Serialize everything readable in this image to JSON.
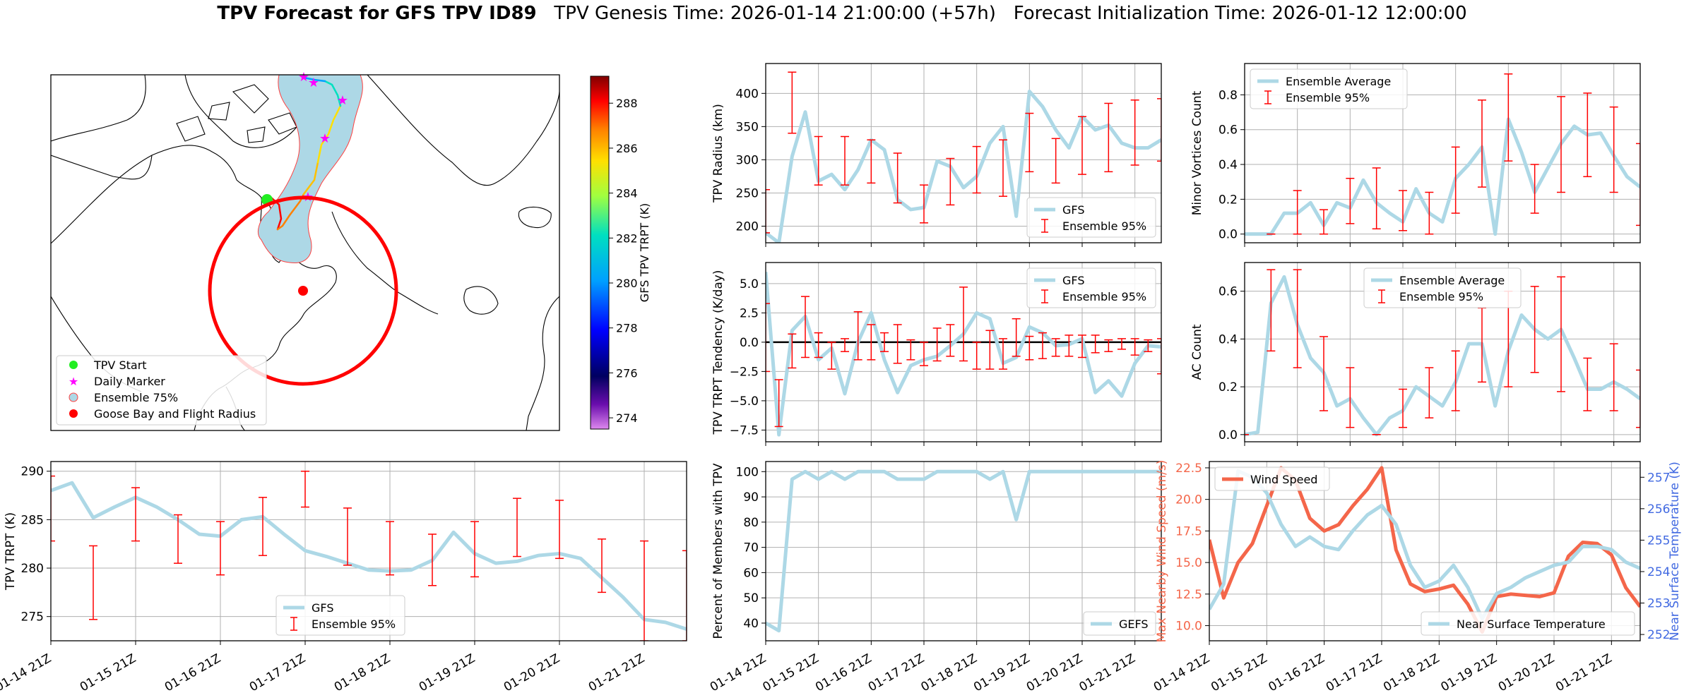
{
  "title": {
    "bold": "TPV Forecast for GFS TPV ID89",
    "genesis": "TPV Genesis Time: 2026-01-14 21:00:00 (+57h)",
    "init": "Forecast Initialization Time: 2026-01-12 12:00:00"
  },
  "colors": {
    "gfs": "#add8e6",
    "ens": "#ff0000",
    "wind": "#f4664a",
    "temp": "#4169e1",
    "grid": "#b0b0b0"
  },
  "map": {
    "legend": [
      "TPV Start",
      "Daily Marker",
      "Ensemble 75%",
      "Goose Bay and Flight Radius"
    ],
    "colorbar": {
      "label": "GFS TPV TRPT (K)",
      "ticks": [
        "274",
        "276",
        "278",
        "280",
        "282",
        "284",
        "286",
        "288"
      ],
      "min": 273.5,
      "max": 289.2
    }
  },
  "x_ticks": [
    "01-14 21Z",
    "01-15 21Z",
    "01-16 21Z",
    "01-17 21Z",
    "01-18 21Z",
    "01-19 21Z",
    "01-20 21Z",
    "01-21 21Z"
  ],
  "chart_data": [
    {
      "id": "radius",
      "type": "line",
      "ylabel": "TPV Radius (km)",
      "ylim": [
        175,
        445
      ],
      "yticks": [
        200,
        250,
        300,
        350,
        400
      ],
      "ytick_labels": [
        "200",
        "250",
        "300",
        "350",
        "400"
      ],
      "legend": [
        "GFS",
        "Ensemble 95%"
      ],
      "legend_pos": "lower-right",
      "series": [
        {
          "name": "GFS",
          "values": [
            190,
            175,
            305,
            372,
            268,
            278,
            255,
            285,
            330,
            315,
            240,
            225,
            228,
            298,
            290,
            258,
            275,
            325,
            350,
            215,
            403,
            380,
            345,
            318,
            365,
            345,
            352,
            325,
            318,
            318,
            330
          ]
        }
      ],
      "errorbars": [
        [
          0,
          190,
          255
        ],
        [
          2,
          340,
          432
        ],
        [
          4,
          262,
          335
        ],
        [
          6,
          262,
          335
        ],
        [
          8,
          265,
          330
        ],
        [
          10,
          235,
          310
        ],
        [
          12,
          205,
          262
        ],
        [
          14,
          232,
          302
        ],
        [
          16,
          250,
          320
        ],
        [
          18,
          245,
          330
        ],
        [
          20,
          282,
          370
        ],
        [
          22,
          265,
          332
        ],
        [
          24,
          278,
          365
        ],
        [
          26,
          282,
          385
        ],
        [
          28,
          292,
          390
        ],
        [
          30,
          298,
          392
        ]
      ]
    },
    {
      "id": "minor",
      "type": "line",
      "ylabel": "Minor Vortices Count",
      "ylim": [
        -0.05,
        0.98
      ],
      "yticks": [
        0,
        0.2,
        0.4,
        0.6,
        0.8
      ],
      "ytick_labels": [
        "0.0",
        "0.2",
        "0.4",
        "0.6",
        "0.8"
      ],
      "legend": [
        "Ensemble Average",
        "Ensemble 95%"
      ],
      "legend_pos": "upper-left",
      "series": [
        {
          "name": "Ensemble Average",
          "values": [
            0,
            0,
            0,
            0.12,
            0.12,
            0.18,
            0.05,
            0.18,
            0.15,
            0.31,
            0.18,
            0.12,
            0.07,
            0.26,
            0.12,
            0.07,
            0.32,
            0.4,
            0.5,
            0,
            0.66,
            0.47,
            0.24,
            0.38,
            0.52,
            0.62,
            0.57,
            0.58,
            0.45,
            0.33,
            0.27
          ]
        }
      ],
      "errorbars": [
        [
          2,
          0,
          0
        ],
        [
          4,
          0,
          0.25
        ],
        [
          6,
          0,
          0.14
        ],
        [
          8,
          0.06,
          0.32
        ],
        [
          10,
          0.03,
          0.38
        ],
        [
          12,
          0.02,
          0.25
        ],
        [
          14,
          0,
          0.24
        ],
        [
          16,
          0.12,
          0.5
        ],
        [
          18,
          0.27,
          0.77
        ],
        [
          20,
          0.42,
          0.92
        ],
        [
          22,
          0.12,
          0.4
        ],
        [
          24,
          0.24,
          0.79
        ],
        [
          26,
          0.33,
          0.81
        ],
        [
          28,
          0.24,
          0.73
        ],
        [
          30,
          0.05,
          0.52
        ]
      ]
    },
    {
      "id": "tendency",
      "type": "line",
      "ylabel": "TPV TRPT Tendency (K/day)",
      "ylim": [
        -8.5,
        6.8
      ],
      "yticks": [
        -7.5,
        -5,
        -2.5,
        0,
        2.5,
        5
      ],
      "ytick_labels": [
        "−7.5",
        "−5.0",
        "−2.5",
        "0.0",
        "2.5",
        "5.0"
      ],
      "legend": [
        "GFS",
        "Ensemble 95%"
      ],
      "legend_pos": "upper-right",
      "series": [
        {
          "name": "GFS",
          "values": [
            6,
            -7.9,
            1,
            2.2,
            -1.5,
            -0.5,
            -4.4,
            0,
            2.5,
            -1.5,
            -4.3,
            -2,
            -1.5,
            -1.2,
            -0.3,
            0.7,
            2.5,
            2,
            -1.8,
            -1.3,
            1.3,
            0.8,
            -0.3,
            -0.2,
            0.3,
            -4.3,
            -3.3,
            -4.6,
            -1.8,
            -0.3,
            -0.4
          ]
        }
      ],
      "errorbars": [
        [
          0,
          -2.5,
          3.3
        ],
        [
          1,
          -7.2,
          -3.2
        ],
        [
          2,
          -2.2,
          0.7
        ],
        [
          3,
          -1.3,
          3.9
        ],
        [
          4,
          -1.3,
          0.8
        ],
        [
          5,
          -2.3,
          0
        ],
        [
          6,
          -0.8,
          0.3
        ],
        [
          7,
          -1.5,
          2.6
        ],
        [
          8,
          -1.5,
          1.5
        ],
        [
          9,
          -0.8,
          0.8
        ],
        [
          10,
          -1.8,
          1.5
        ],
        [
          11,
          -1.5,
          0.2
        ],
        [
          12,
          -2,
          0
        ],
        [
          13,
          -1.6,
          1.2
        ],
        [
          14,
          -1.2,
          1.5
        ],
        [
          15,
          -1.6,
          4.7
        ],
        [
          16,
          -2.3,
          0
        ],
        [
          17,
          -2.3,
          1
        ],
        [
          18,
          -2.3,
          0.3
        ],
        [
          19,
          -1.2,
          2
        ],
        [
          20,
          -1.5,
          0.5
        ],
        [
          21,
          -1.4,
          0.8
        ],
        [
          22,
          -1.2,
          0.3
        ],
        [
          23,
          -1.2,
          0.6
        ],
        [
          24,
          -1.3,
          0.6
        ],
        [
          25,
          -0.9,
          0.6
        ],
        [
          26,
          -0.8,
          0.2
        ],
        [
          27,
          -0.6,
          0.3
        ],
        [
          28,
          -1.1,
          0.3
        ],
        [
          29,
          -0.8,
          0.2
        ],
        [
          30,
          -2.7,
          0.3
        ]
      ]
    },
    {
      "id": "ac",
      "type": "line",
      "ylabel": "AC Count",
      "ylim": [
        -0.03,
        0.72
      ],
      "yticks": [
        0,
        0.2,
        0.4,
        0.6
      ],
      "ytick_labels": [
        "0.0",
        "0.2",
        "0.4",
        "0.6"
      ],
      "legend": [
        "Ensemble Average",
        "Ensemble 95%"
      ],
      "legend_pos": "upper-center",
      "series": [
        {
          "name": "Ensemble Average",
          "values": [
            0,
            0.01,
            0.55,
            0.66,
            0.46,
            0.32,
            0.26,
            0.12,
            0.15,
            0.07,
            0,
            0.07,
            0.1,
            0.2,
            0.16,
            0.12,
            0.22,
            0.38,
            0.38,
            0.12,
            0.35,
            0.5,
            0.44,
            0.4,
            0.44,
            0.32,
            0.19,
            0.19,
            0.22,
            0.19,
            0.15
          ]
        }
      ],
      "errorbars": [
        [
          0,
          0,
          0
        ],
        [
          2,
          0.35,
          0.69
        ],
        [
          4,
          0.28,
          0.69
        ],
        [
          6,
          0.1,
          0.41
        ],
        [
          8,
          0.03,
          0.28
        ],
        [
          10,
          0,
          0
        ],
        [
          12,
          0.03,
          0.19
        ],
        [
          14,
          0.07,
          0.28
        ],
        [
          16,
          0.1,
          0.35
        ],
        [
          18,
          0.22,
          0.53
        ],
        [
          20,
          0.2,
          0.6
        ],
        [
          22,
          0.26,
          0.62
        ],
        [
          24,
          0.18,
          0.66
        ],
        [
          26,
          0.1,
          0.32
        ],
        [
          28,
          0.1,
          0.38
        ],
        [
          30,
          0.03,
          0.27
        ]
      ]
    },
    {
      "id": "trpt",
      "type": "line",
      "ylabel": "TPV TRPT (K)",
      "ylim": [
        272.5,
        291
      ],
      "yticks": [
        275,
        280,
        285,
        290
      ],
      "ytick_labels": [
        "275",
        "280",
        "285",
        "290"
      ],
      "legend": [
        "GFS",
        "Ensemble 95%"
      ],
      "legend_pos": "lower-center",
      "series": [
        {
          "name": "GFS",
          "values": [
            288,
            288.8,
            285.2,
            286.3,
            287.3,
            286.3,
            285,
            283.5,
            283.3,
            285,
            285.3,
            283.5,
            281.8,
            281.2,
            280.5,
            279.8,
            279.7,
            279.8,
            280.8,
            283.7,
            281.5,
            280.5,
            280.7,
            281.3,
            281.5,
            281,
            279,
            277,
            274.7,
            274.4,
            273.7
          ]
        }
      ],
      "errorbars": [
        [
          0,
          282.8,
          289.5
        ],
        [
          2,
          274.7,
          282.3
        ],
        [
          4,
          282.8,
          288.3
        ],
        [
          6,
          280.5,
          285.5
        ],
        [
          8,
          279.3,
          284.8
        ],
        [
          10,
          281.3,
          287.3
        ],
        [
          12,
          286.3,
          290
        ],
        [
          14,
          280.3,
          286.2
        ],
        [
          16,
          279.3,
          284.8
        ],
        [
          18,
          278.2,
          283.5
        ],
        [
          20,
          279.1,
          284.8
        ],
        [
          22,
          281.2,
          287.2
        ],
        [
          24,
          281,
          287
        ],
        [
          26,
          277.5,
          283
        ],
        [
          28,
          272.5,
          282.8
        ],
        [
          30,
          272.5,
          281.8
        ]
      ]
    },
    {
      "id": "percent",
      "type": "line",
      "ylabel": "Percent of Members with TPV",
      "ylim": [
        33,
        104
      ],
      "yticks": [
        40,
        50,
        60,
        70,
        80,
        90,
        100
      ],
      "ytick_labels": [
        "40",
        "50",
        "60",
        "70",
        "80",
        "90",
        "100"
      ],
      "legend": [
        "GEFS"
      ],
      "legend_pos": "lower-right",
      "series": [
        {
          "name": "GEFS",
          "values": [
            40,
            37,
            97,
            100,
            97,
            100,
            97,
            100,
            100,
            100,
            97,
            97,
            97,
            100,
            100,
            100,
            100,
            97,
            100,
            81,
            100,
            100,
            100,
            100,
            100,
            100,
            100,
            100,
            100,
            100,
            100
          ]
        }
      ]
    },
    {
      "id": "wind",
      "type": "line",
      "ylabel": "Max Nearby Wind Speed (m/s)",
      "ylim": [
        8.8,
        23
      ],
      "yticks": [
        10,
        12.5,
        15,
        17.5,
        20,
        22.5
      ],
      "ytick_labels": [
        "10.0",
        "12.5",
        "15.0",
        "17.5",
        "20.0",
        "22.5"
      ],
      "legend": [
        "Wind Speed"
      ],
      "legend_pos": "upper-left",
      "series": [
        {
          "name": "Wind Speed",
          "values": [
            16.8,
            12.2,
            15,
            16.5,
            19.5,
            22.5,
            21.5,
            18.5,
            17.5,
            18,
            19.5,
            20.8,
            22.5,
            16,
            13.3,
            12.7,
            12.9,
            13.2,
            11.7,
            9.5,
            12.3,
            12.5,
            12.4,
            12.3,
            12.6,
            15.5,
            16.6,
            16.5,
            15.6,
            13,
            11.5
          ]
        }
      ],
      "secondary": {
        "ylabel": "Near Surface Temperature (K)",
        "ylim": [
          251.8,
          257.5
        ],
        "yticks": [
          252,
          253,
          254,
          255,
          256,
          257
        ],
        "ytick_labels": [
          "252",
          "253",
          "254",
          "255",
          "256",
          "257"
        ],
        "legend": [
          "Near Surface Temperature"
        ],
        "legend_pos": "lower-right",
        "series": [
          {
            "name": "Near Surface Temperature",
            "values": [
              252.8,
              253.6,
              257.2,
              257,
              256.5,
              255.5,
              254.8,
              255.1,
              254.8,
              254.7,
              255.3,
              255.8,
              256.1,
              255.5,
              254.2,
              253.5,
              253.7,
              254.2,
              253.5,
              252.5,
              253.3,
              253.5,
              253.8,
              254,
              254.2,
              254.3,
              254.8,
              254.8,
              254.7,
              254.3,
              254.1
            ]
          }
        ]
      }
    }
  ]
}
